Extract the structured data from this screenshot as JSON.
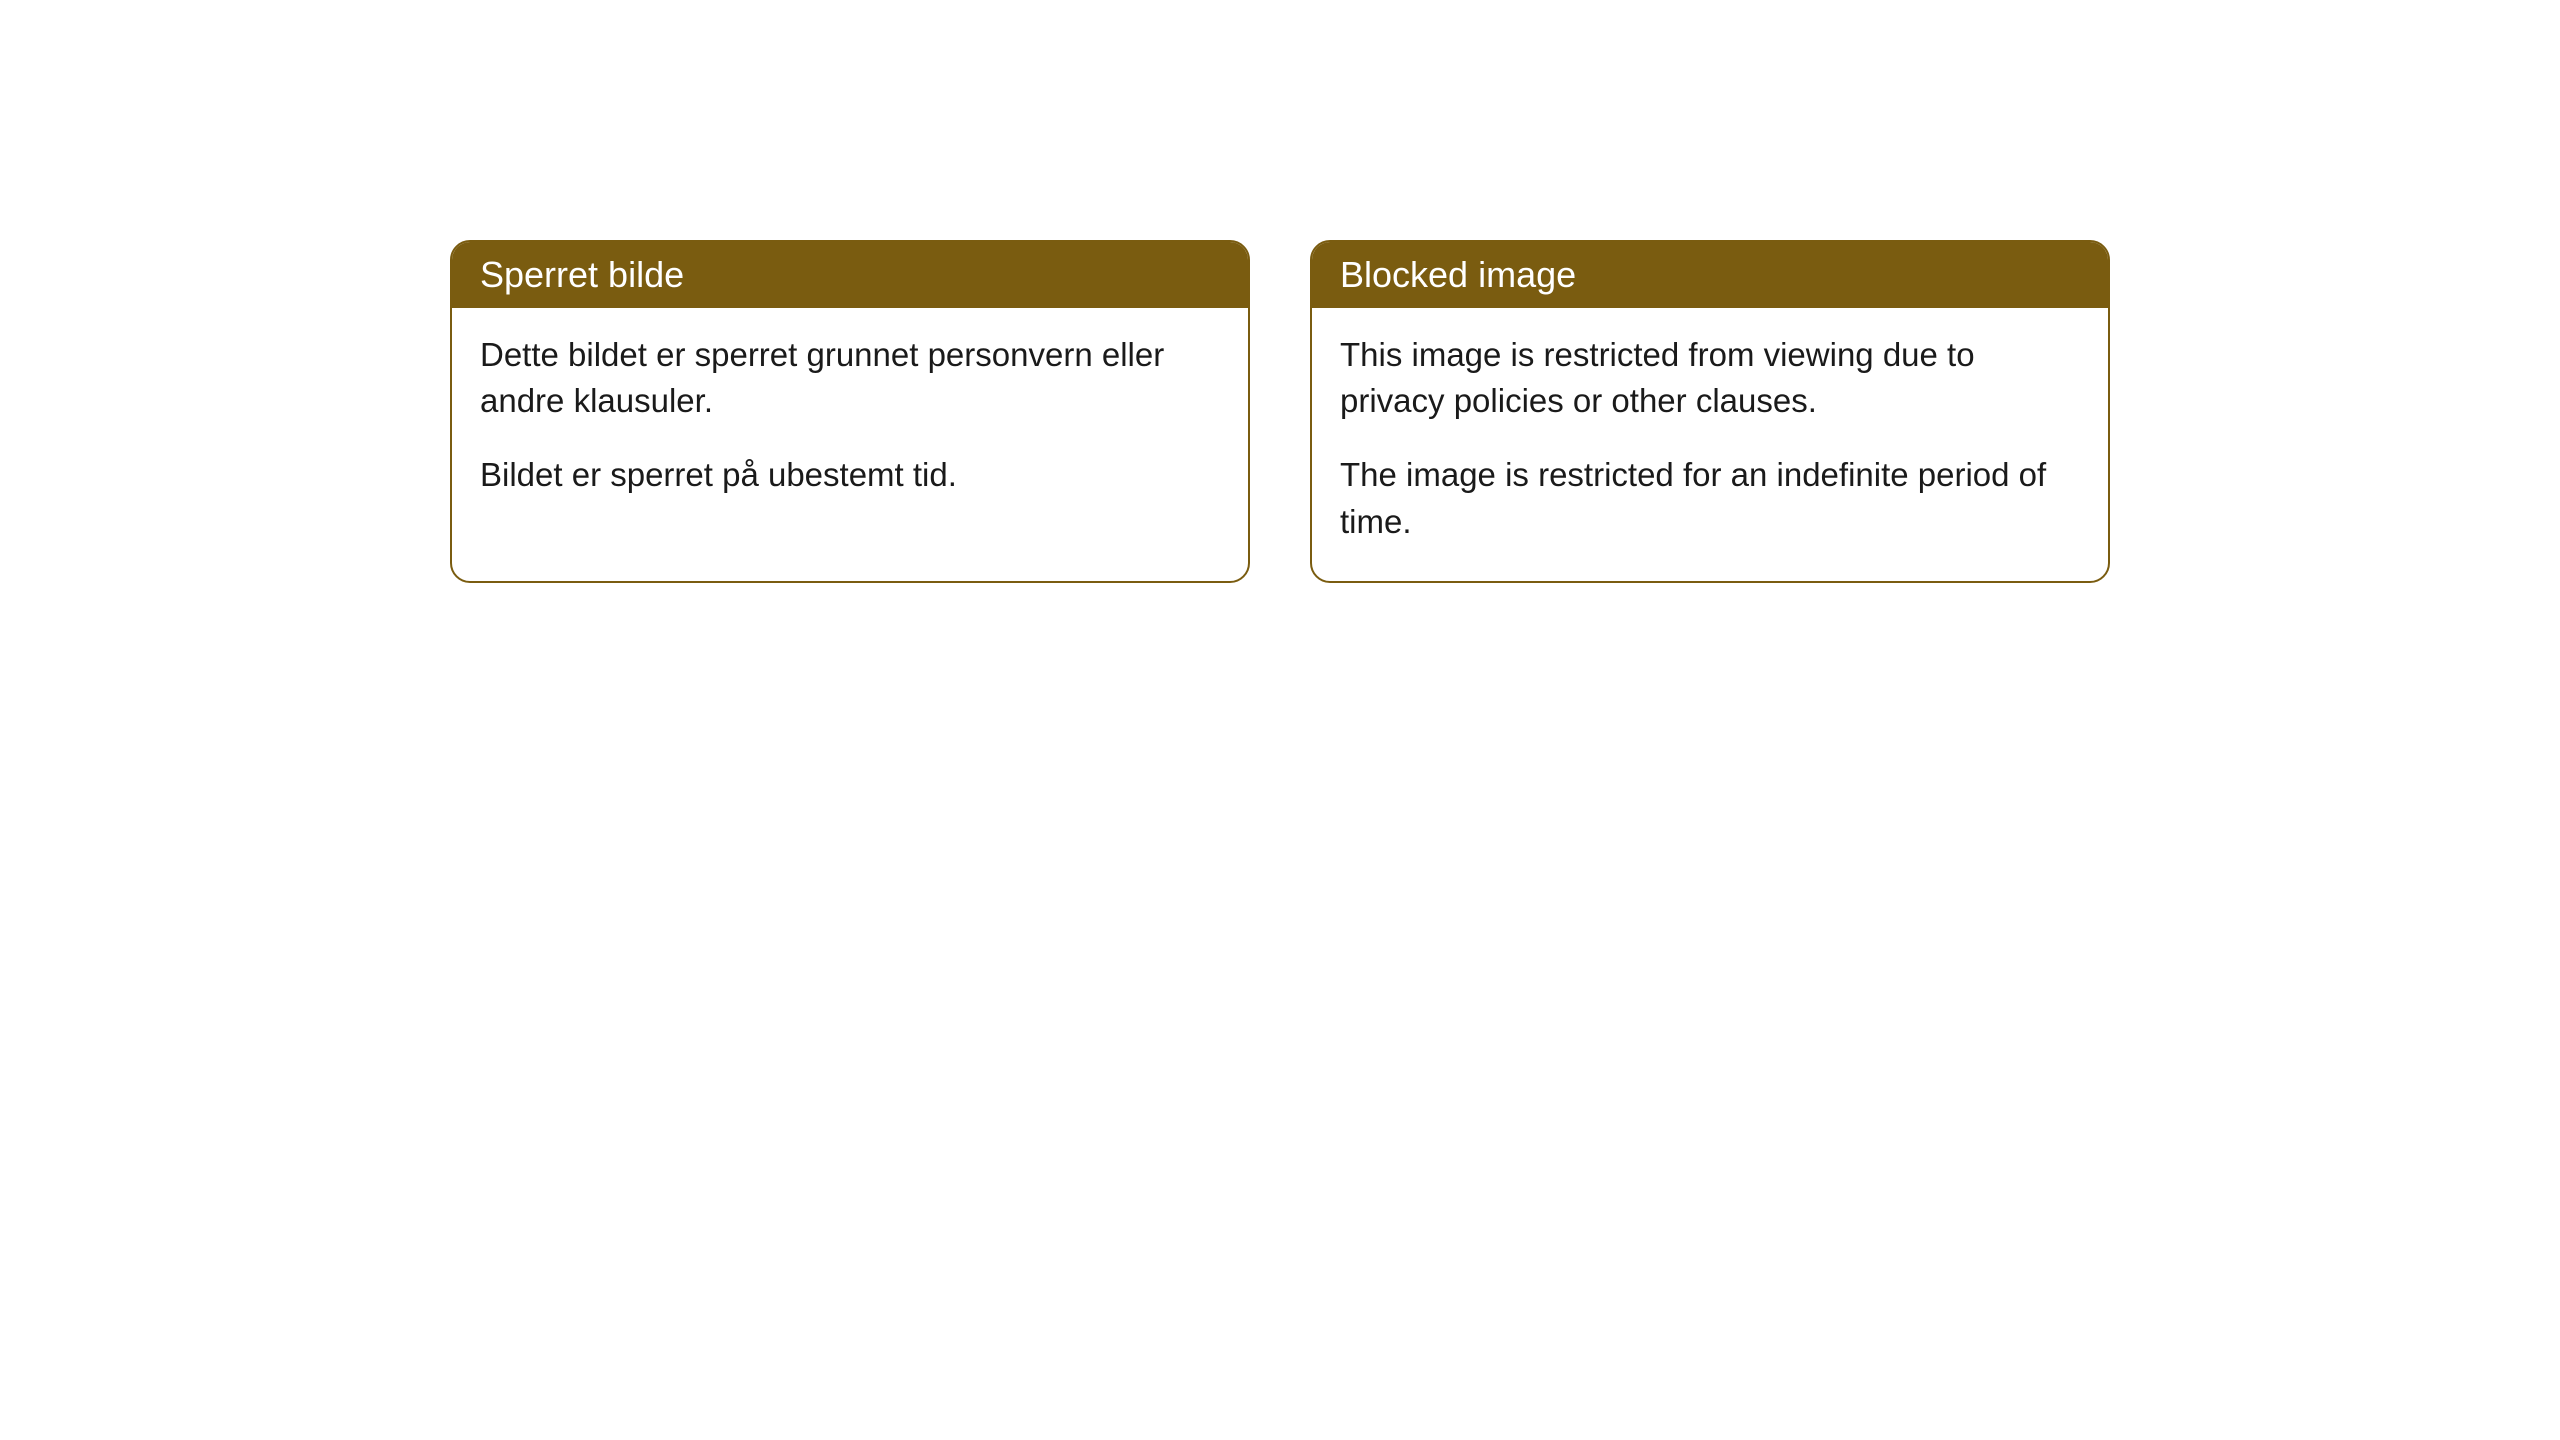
{
  "cards": [
    {
      "title": "Sperret bilde",
      "paragraph1": "Dette bildet er sperret grunnet personvern eller andre klausuler.",
      "paragraph2": "Bildet er sperret på ubestemt tid."
    },
    {
      "title": "Blocked image",
      "paragraph1": "This image is restricted from viewing due to privacy policies or other clauses.",
      "paragraph2": "The image is restricted for an indefinite period of time."
    }
  ],
  "styling": {
    "header_background": "#7a5c10",
    "header_text_color": "#ffffff",
    "border_color": "#7a5c10",
    "body_background": "#ffffff",
    "body_text_color": "#1a1a1a",
    "border_radius": 20,
    "title_fontsize": 36,
    "body_fontsize": 33
  }
}
